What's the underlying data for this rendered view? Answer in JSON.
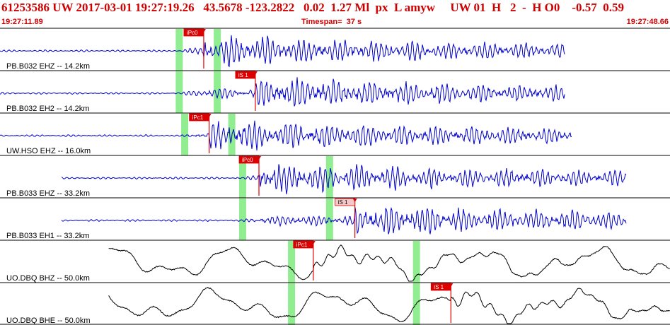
{
  "header": {
    "title": "61253586 UW 2017-03-01 19:27:19.26   43.5678 -123.2822   0.02  1.27 Ml  px  L amyw     UW 01  H   2  -  H O0    -0.57  0.59",
    "start_time": "19:27:11.89",
    "end_time": "19:27:48.66",
    "timespan": "Timespan=  37 s"
  },
  "colors": {
    "header_text": "#d00000",
    "velocity_trace": "#0000cc",
    "broadband_trace": "#000000",
    "pick": "#dd0000",
    "pick_weak_fill": "#f4c8c8",
    "theoretical_window": "#90ee90",
    "divider": "#000000"
  },
  "chart_data": {
    "type": "line",
    "time_range_s": [
      0,
      37
    ],
    "channels": [
      {
        "label": "PB.B032 EHZ -- 14.2km",
        "trace_color": "velocity",
        "data_start_s": 0.0,
        "data_end_s": 31.2,
        "windows_s": [
          9.9,
          12.0
        ],
        "picks": [
          {
            "label": "iPc0",
            "t": 11.25,
            "weak": false
          }
        ]
      },
      {
        "label": "PB.B032 EH2 -- 14.2km",
        "trace_color": "velocity",
        "data_start_s": 0.0,
        "data_end_s": 31.2,
        "windows_s": [
          9.9,
          12.0
        ],
        "picks": [
          {
            "label": "iS 1",
            "t": 14.1,
            "weak": false
          }
        ]
      },
      {
        "label": "UW.HSO EHZ -- 16.0km",
        "trace_color": "velocity",
        "data_start_s": 0.0,
        "data_end_s": 31.6,
        "windows_s": [
          10.2,
          12.8
        ],
        "picks": [
          {
            "label": "iPc1",
            "t": 11.55,
            "weak": false
          }
        ]
      },
      {
        "label": "PB.B033 EHZ -- 33.2km",
        "trace_color": "velocity",
        "data_start_s": 3.4,
        "data_end_s": 34.6,
        "windows_s": [
          13.4,
          18.2
        ],
        "picks": [
          {
            "label": "iPc0",
            "t": 14.3,
            "weak": false
          }
        ]
      },
      {
        "label": "PB.B033 EH1 -- 33.2km",
        "trace_color": "velocity",
        "data_start_s": 3.4,
        "data_end_s": 34.6,
        "windows_s": [
          13.4,
          18.2
        ],
        "picks": [
          {
            "label": "iS 1",
            "t": 19.6,
            "weak": true
          }
        ]
      },
      {
        "label": "UO.DBQ BHZ -- 50.0km",
        "trace_color": "broadband",
        "data_start_s": 6.0,
        "data_end_s": 37.0,
        "windows_s": [
          16.1,
          23.0
        ],
        "picks": [
          {
            "label": "iPc1",
            "t": 17.3,
            "weak": false
          }
        ]
      },
      {
        "label": "UO.DBQ BHE -- 50.0km",
        "trace_color": "broadband",
        "data_start_s": 6.0,
        "data_end_s": 37.0,
        "windows_s": [
          16.1,
          23.0
        ],
        "picks": [
          {
            "label": "iS 1",
            "t": 24.9,
            "weak": false
          }
        ]
      }
    ]
  }
}
